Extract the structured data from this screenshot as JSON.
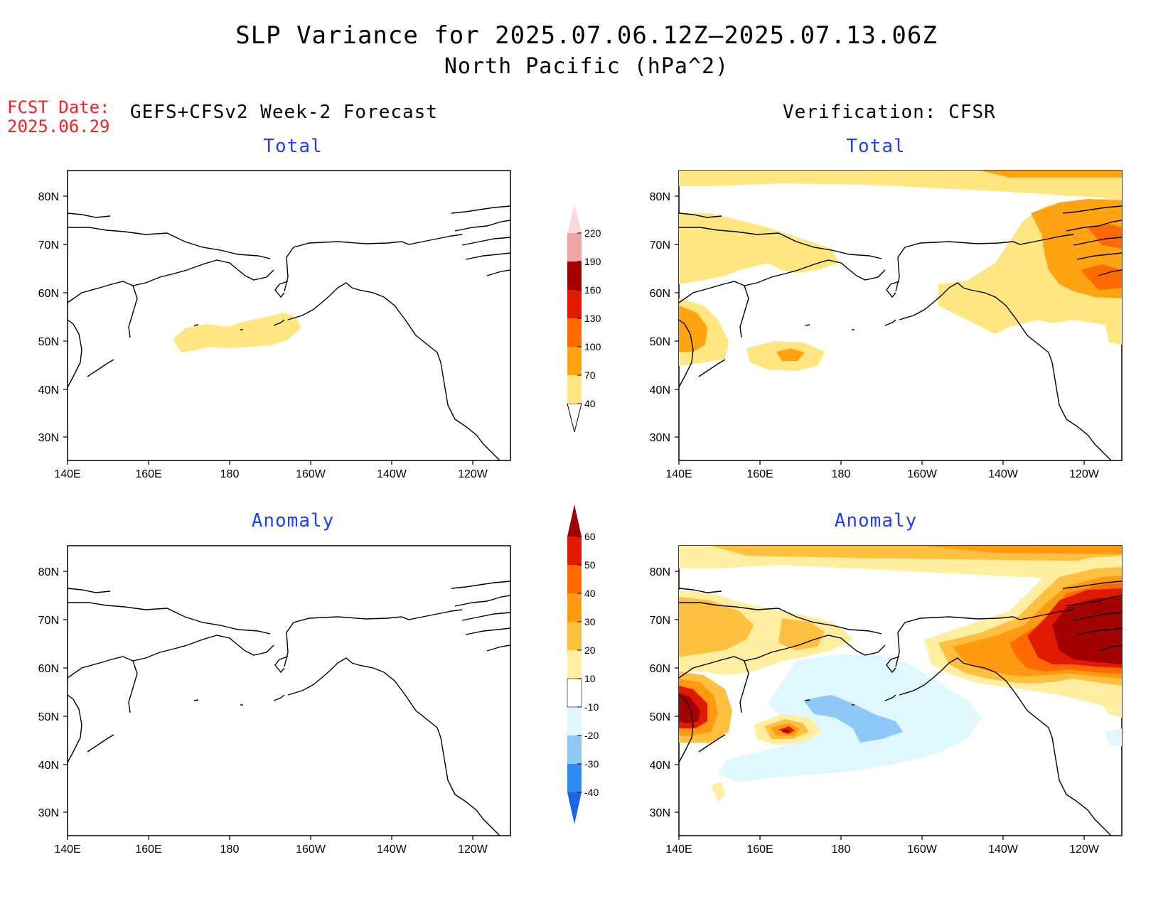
{
  "title": {
    "line1": "SLP Variance for 2025.07.06.12Z–2025.07.13.06Z",
    "line2": "North Pacific (hPa^2)"
  },
  "forecast_date": {
    "label": "FCST Date:",
    "value": "2025.06.29"
  },
  "columns": {
    "left": "GEFS+CFSv2 Week-2 Forecast",
    "right": "Verification: CFSR"
  },
  "panel_titles": {
    "total": "Total",
    "anomaly": "Anomaly"
  },
  "axes": {
    "lat_labels": [
      "80N",
      "70N",
      "60N",
      "50N",
      "40N",
      "30N"
    ],
    "lon_labels": [
      "140E",
      "160E",
      "180",
      "160W",
      "140W",
      "120W"
    ]
  },
  "colorbars": {
    "total": {
      "levels": [
        "40",
        "70",
        "100",
        "130",
        "160",
        "190",
        "220"
      ],
      "colors": [
        "#ffe680",
        "#ffa410",
        "#ff6a00",
        "#e01a00",
        "#a30000",
        "#f4a3a3",
        "#fcd9d9"
      ]
    },
    "anomaly": {
      "levels": [
        "-40",
        "-30",
        "-20",
        "-10",
        "10",
        "20",
        "30",
        "40",
        "50",
        "60"
      ],
      "colors_low": [
        "#1a66e6",
        "#2e8bf0",
        "#8ec8f8",
        "#dff8ff"
      ],
      "colors_high": [
        "#ffffff",
        "#ffeea0",
        "#ffc040",
        "#ff9a10",
        "#ff6a00",
        "#e01a00",
        "#a30000"
      ]
    }
  },
  "colors": {
    "title_text": "#000000",
    "fcst_text": "#ff1f1f",
    "panel_title_text": "#1f3fff"
  }
}
